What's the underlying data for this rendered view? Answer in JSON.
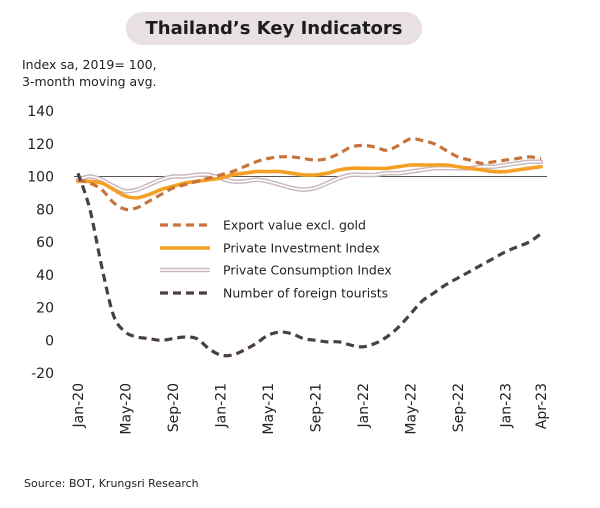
{
  "title": "Thailand’s Key Indicators",
  "ylabel_line1": "Index sa, 2019= 100,",
  "ylabel_line2": "3-month moving avg.",
  "source": "Source: BOT, Krungsri Research",
  "chart_data": {
    "type": "line",
    "ylim": [
      -20,
      140
    ],
    "yticks": [
      -20,
      0,
      20,
      40,
      60,
      80,
      100,
      120,
      140
    ],
    "reference_line": 100,
    "x": [
      "Jan-20",
      "Feb-20",
      "Mar-20",
      "Apr-20",
      "May-20",
      "Jun-20",
      "Jul-20",
      "Aug-20",
      "Sep-20",
      "Oct-20",
      "Nov-20",
      "Dec-20",
      "Jan-21",
      "Feb-21",
      "Mar-21",
      "Apr-21",
      "May-21",
      "Jun-21",
      "Jul-21",
      "Aug-21",
      "Sep-21",
      "Oct-21",
      "Nov-21",
      "Dec-21",
      "Jan-22",
      "Feb-22",
      "Mar-22",
      "Apr-22",
      "May-22",
      "Jun-22",
      "Jul-22",
      "Aug-22",
      "Sep-22",
      "Oct-22",
      "Nov-22",
      "Dec-22",
      "Jan-23",
      "Feb-23",
      "Mar-23",
      "Apr-23"
    ],
    "xtick_labels": [
      "Jan-20",
      "May-20",
      "Sep-20",
      "Jan-21",
      "May-21",
      "Sep-21",
      "Jan-22",
      "May-22",
      "Sep-22",
      "Jan-23",
      "Apr-23"
    ],
    "legend_position": "center",
    "series": [
      {
        "name": "Export value excl. gold",
        "color": "#c8733a",
        "style": "dashed",
        "values": [
          98,
          96,
          92,
          84,
          80,
          81,
          85,
          89,
          93,
          95,
          97,
          99,
          101,
          103,
          106,
          109,
          111,
          112,
          112,
          111,
          110,
          111,
          114,
          118,
          119,
          118,
          116,
          119,
          123,
          122,
          120,
          116,
          112,
          110,
          108,
          109,
          110,
          111,
          112,
          111
        ]
      },
      {
        "name": "Private Investment Index",
        "color": "#f5a025",
        "style": "solid",
        "values": [
          97,
          97,
          96,
          92,
          88,
          87,
          89,
          92,
          94,
          96,
          97,
          98,
          99,
          101,
          102,
          103,
          103,
          103,
          102,
          101,
          101,
          102,
          104,
          105,
          105,
          105,
          105,
          106,
          107,
          107,
          107,
          107,
          106,
          105,
          104,
          103,
          103,
          104,
          105,
          106
        ]
      },
      {
        "name": "Private Consumption Index",
        "color": "#c9b8bc",
        "style": "double",
        "values": [
          98,
          100,
          98,
          94,
          91,
          92,
          95,
          98,
          100,
          100,
          101,
          101,
          99,
          97,
          97,
          98,
          97,
          95,
          93,
          92,
          93,
          96,
          99,
          101,
          101,
          101,
          102,
          102,
          103,
          104,
          105,
          105,
          105,
          105,
          106,
          106,
          107,
          108,
          109,
          109
        ]
      },
      {
        "name": "Number of foreign tourists",
        "color": "#4a3f42",
        "style": "dashed",
        "values": [
          102,
          80,
          45,
          15,
          5,
          2,
          1,
          0,
          1,
          2,
          1,
          -5,
          -9,
          -9,
          -6,
          -2,
          3,
          5,
          4,
          1,
          0,
          -1,
          -1,
          -3,
          -4,
          -2,
          2,
          8,
          16,
          24,
          29,
          34,
          38,
          42,
          46,
          50,
          54,
          57,
          60,
          65
        ]
      }
    ]
  }
}
